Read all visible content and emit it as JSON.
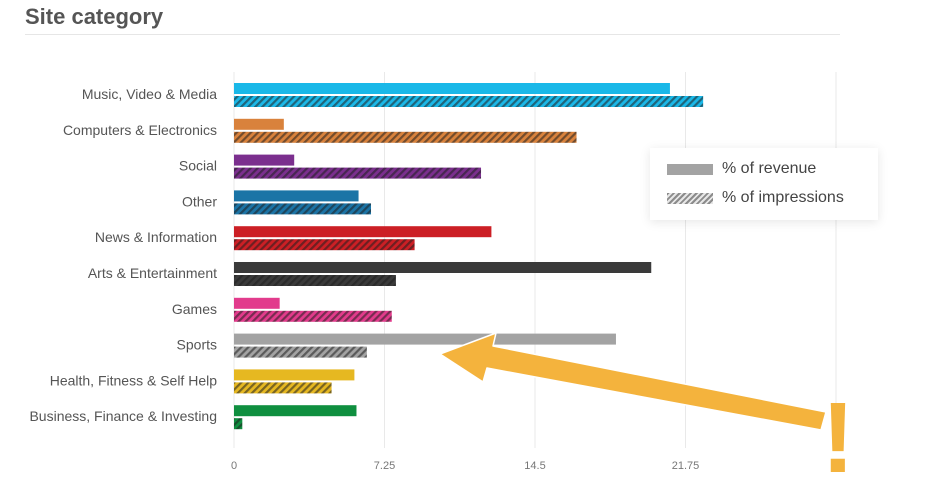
{
  "title": "Site category",
  "legend": {
    "revenue_label": "% of revenue",
    "impressions_label": "% of impressions"
  },
  "chart_data": {
    "type": "bar",
    "orientation": "horizontal",
    "categories": [
      "Music, Video & Media",
      "Computers & Electronics",
      "Social",
      "Other",
      "News & Information",
      "Arts & Entertainment",
      "Games",
      "Sports",
      "Health, Fitness & Self Help",
      "Business, Finance & Investing"
    ],
    "category_colors": [
      "#1ab8e8",
      "#d9823c",
      "#7b2f8e",
      "#1b74a6",
      "#cc1f25",
      "#3a3a3a",
      "#e23b8c",
      "#a3a3a3",
      "#e6b821",
      "#0f8f3f"
    ],
    "series": [
      {
        "name": "% of revenue",
        "pattern": "solid",
        "values": [
          21.0,
          2.4,
          2.9,
          6.0,
          12.4,
          20.1,
          2.2,
          18.4,
          5.8,
          5.9
        ]
      },
      {
        "name": "% of impressions",
        "pattern": "hatched",
        "values": [
          22.6,
          16.5,
          11.9,
          6.6,
          8.7,
          7.8,
          7.6,
          6.4,
          4.7,
          0.4
        ]
      }
    ],
    "x_ticks": [
      "0",
      "7.25",
      "14.5",
      "21.75"
    ],
    "xlim": [
      0,
      29
    ],
    "grid": true,
    "legend_position": "right",
    "annotation": {
      "type": "arrow",
      "color": "#f4b33d",
      "points_to": "Sports",
      "text": "!"
    }
  }
}
